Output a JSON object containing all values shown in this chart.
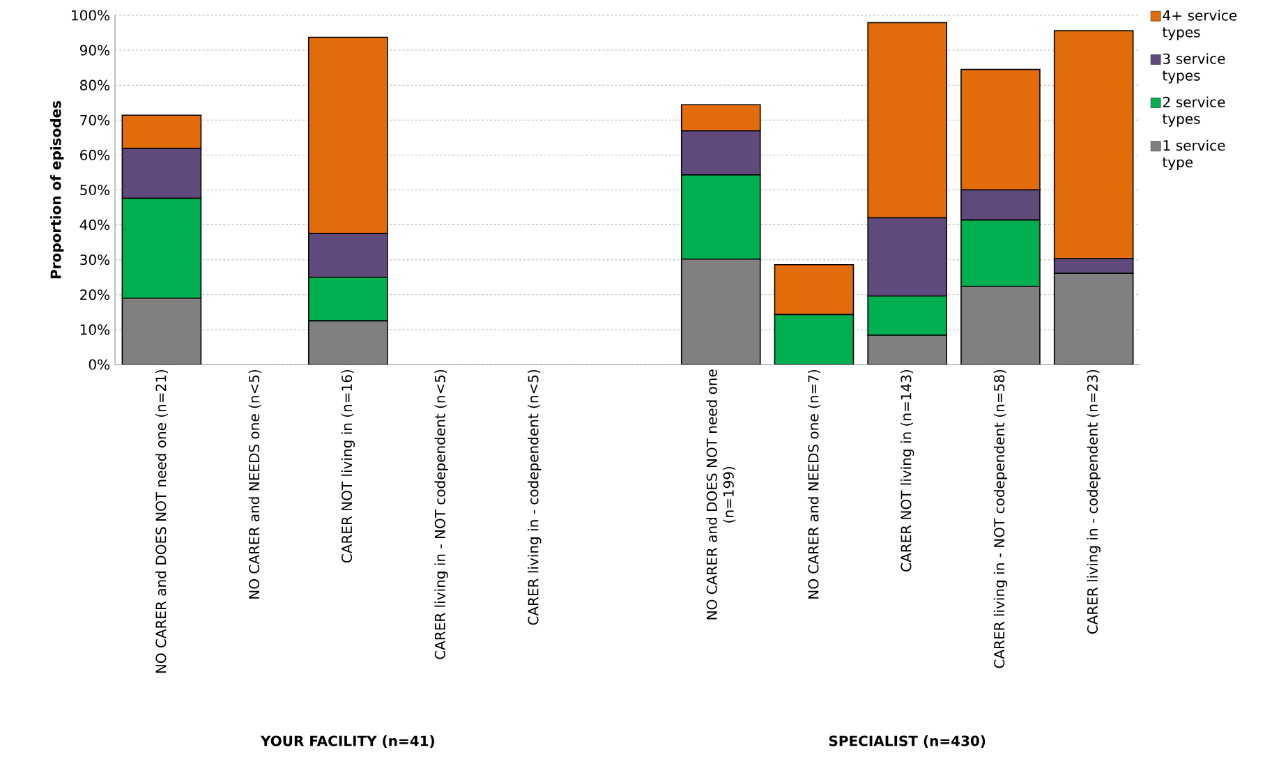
{
  "chart_data": {
    "type": "bar",
    "stacked": true,
    "ylabel": "Proportion of episodes",
    "categories": [
      "NO CARER and DOES NOT need one (n=21)",
      "NO CARER and NEEDS one (n<5)",
      "CARER NOT living in  (n=16)",
      "CARER living in - NOT codependent (n<5)",
      "CARER living in - codependent (n<5)",
      null,
      "NO CARER and DOES NOT need one (n=199)",
      "NO CARER and NEEDS one (n=7)",
      "CARER NOT living in  (n=143)",
      "CARER living in - NOT codependent (n=58)",
      "CARER living in - codependent (n=23)"
    ],
    "series": [
      {
        "name": "1 service type",
        "color": "#808080",
        "values": [
          19.0,
          null,
          12.5,
          null,
          null,
          null,
          30.2,
          0,
          8.4,
          22.4,
          26.1
        ]
      },
      {
        "name": "2 service types",
        "color": "#00b050",
        "values": [
          28.6,
          null,
          12.5,
          null,
          null,
          null,
          24.1,
          14.3,
          11.2,
          19.0,
          0
        ]
      },
      {
        "name": "3 service types",
        "color": "#604a7b",
        "values": [
          14.3,
          null,
          12.5,
          null,
          null,
          null,
          12.6,
          0,
          22.4,
          8.6,
          4.3
        ]
      },
      {
        "name": "4+ service types",
        "color": "#e36c0a",
        "values": [
          9.5,
          null,
          56.2,
          null,
          null,
          null,
          7.5,
          14.3,
          55.9,
          34.5,
          65.2
        ]
      }
    ],
    "ylim": [
      0,
      100
    ],
    "yticks": [
      {
        "value": 0,
        "label": "0%"
      },
      {
        "value": 10,
        "label": "10%"
      },
      {
        "value": 20,
        "label": "20%"
      },
      {
        "value": 30,
        "label": "30%"
      },
      {
        "value": 40,
        "label": "40%"
      },
      {
        "value": 50,
        "label": "50%"
      },
      {
        "value": 60,
        "label": "60%"
      },
      {
        "value": 70,
        "label": "70%"
      },
      {
        "value": 80,
        "label": "80%"
      },
      {
        "value": 90,
        "label": "90%"
      },
      {
        "value": 100,
        "label": "100%"
      }
    ],
    "grid": "y",
    "legend": "right",
    "annotations": [
      "YOUR FACILITY (n=41)",
      "SPECIALIST (n=430)"
    ]
  }
}
